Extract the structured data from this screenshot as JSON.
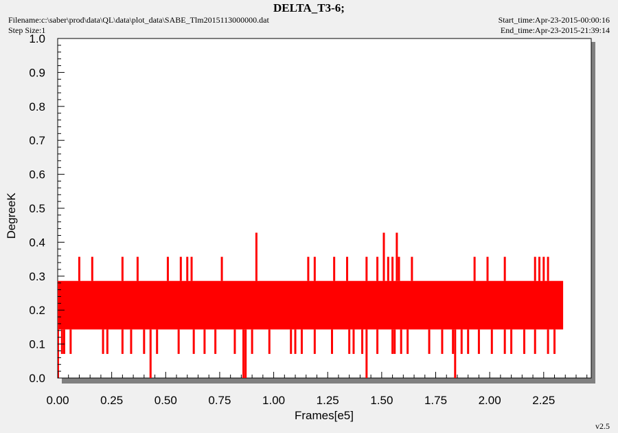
{
  "header": {
    "title": "DELTA_T3-6;",
    "filename": "Filename:c:\\saber\\prod\\data\\QL\\data\\plot_data\\SABE_Tlm2015113000000.dat",
    "step_size": "Step Size:1",
    "start_time": "Start_time:Apr-23-2015-00:00:16",
    "end_time": "End_time:Apr-23-2015-21:39:14"
  },
  "version": "v2.5",
  "colors": {
    "series": "#ff0000",
    "plot_bg": "#ffffff",
    "page_bg": "#f0f0f0",
    "shadow": "#808080"
  },
  "chart_data": {
    "type": "line",
    "title": "DELTA_T3-6;",
    "xlabel": "Frames[e5]",
    "ylabel": "DegreeK",
    "xlim": [
      0,
      2.47
    ],
    "ylim": [
      0,
      1.0
    ],
    "x_ticks": [
      "0.00",
      "0.25",
      "0.50",
      "0.75",
      "1.00",
      "1.25",
      "1.50",
      "1.75",
      "2.00",
      "2.25"
    ],
    "y_ticks": [
      "0.0",
      "0.1",
      "0.2",
      "0.3",
      "0.4",
      "0.5",
      "0.6",
      "0.7",
      "0.8",
      "0.9",
      "1.0"
    ],
    "grid": false,
    "series": [
      {
        "color": "#ff0000",
        "x_range": [
          0,
          2.34
        ],
        "band": {
          "low": 0.143,
          "high": 0.286
        },
        "dips_to_0.071": [
          0.02,
          0.03,
          0.06,
          0.21,
          0.23,
          0.3,
          0.34,
          0.4,
          0.46,
          0.56,
          0.63,
          0.68,
          0.73,
          0.82,
          0.9,
          0.98,
          1.08,
          1.1,
          1.13,
          1.19,
          1.27,
          1.35,
          1.37,
          1.41,
          1.48,
          1.55,
          1.56,
          1.59,
          1.62,
          1.72,
          1.78,
          1.83,
          1.87,
          1.9,
          1.95,
          2.01,
          2.07,
          2.1,
          2.16,
          2.21,
          2.27,
          2.3
        ],
        "dips_to_0.0": [
          0.43,
          0.86,
          0.87,
          1.43,
          1.84
        ],
        "spikes_to_0.357": [
          0.1,
          0.16,
          0.3,
          0.37,
          0.51,
          0.57,
          0.6,
          0.62,
          0.76,
          1.16,
          1.19,
          1.28,
          1.34,
          1.43,
          1.48,
          1.53,
          1.55,
          1.58,
          1.64,
          1.93,
          1.99,
          2.07,
          2.21,
          2.23,
          2.25,
          2.27
        ],
        "spikes_to_0.428": [
          0.92,
          1.51,
          1.57
        ]
      }
    ]
  }
}
